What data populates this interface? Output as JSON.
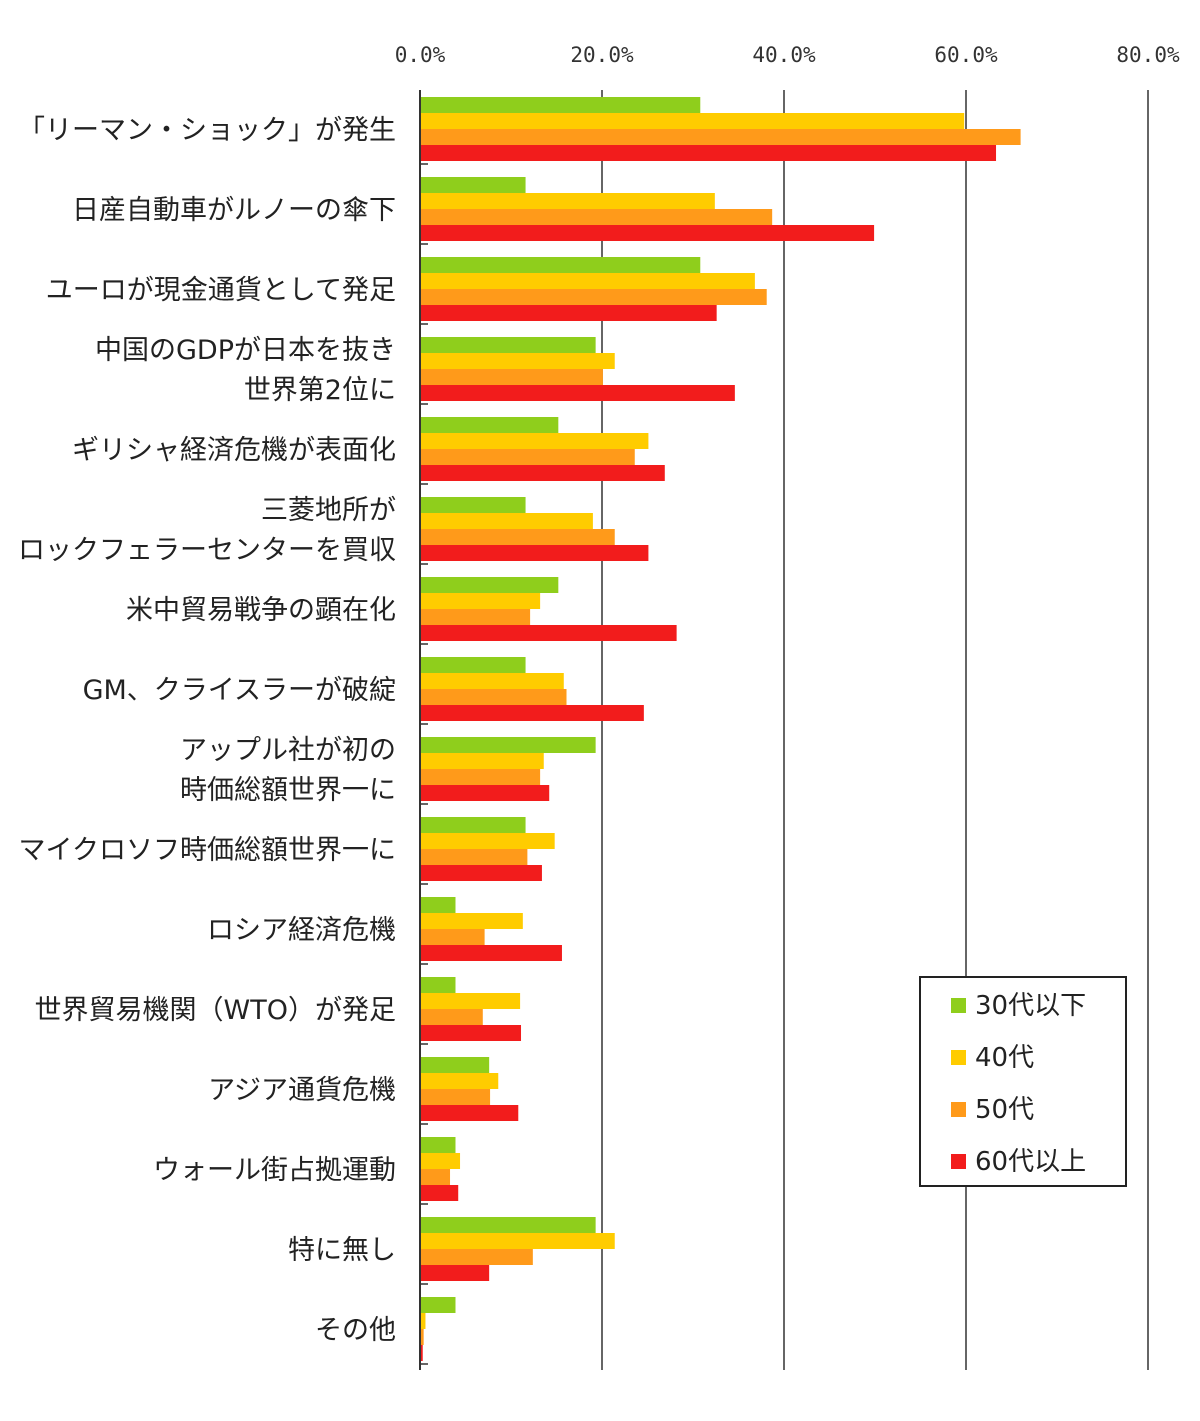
{
  "chart_data": {
    "type": "bar",
    "orientation": "horizontal",
    "title": "",
    "xlabel": "",
    "ylabel": "",
    "xlim": [
      0,
      80
    ],
    "x_ticks": [
      "0.0%",
      "20.0%",
      "40.0%",
      "60.0%",
      "80.0%"
    ],
    "grid": "vertical gridlines",
    "legend_position": "bottom-right, inside plot",
    "categories": [
      [
        "「リーマン・ショック」が発生"
      ],
      [
        "日産自動車がルノーの傘下"
      ],
      [
        "ユーロが現金通貨として発足"
      ],
      [
        "中国のGDPが日本を抜き",
        "世界第2位に"
      ],
      [
        "ギリシャ経済危機が表面化"
      ],
      [
        "三菱地所が",
        "ロックフェラーセンターを買収"
      ],
      [
        "米中貿易戦争の顕在化"
      ],
      [
        "GM、クライスラーが破綻"
      ],
      [
        "アップル社が初の",
        "時価総額世界一に"
      ],
      [
        "マイクロソフ時価総額世界一に"
      ],
      [
        "ロシア経済危機"
      ],
      [
        "世界貿易機関（WTO）が発足"
      ],
      [
        "アジア通貨危機"
      ],
      [
        "ウォール街占拠運動"
      ],
      [
        "特に無し"
      ],
      [
        "その他"
      ]
    ],
    "series": [
      {
        "name": "30代以下",
        "color": "#8fce1c",
        "values": [
          30.8,
          11.6,
          30.8,
          19.3,
          15.2,
          11.6,
          15.2,
          11.6,
          19.3,
          11.6,
          3.9,
          3.9,
          7.6,
          3.9,
          19.3,
          3.9
        ]
      },
      {
        "name": "40代",
        "color": "#ffcc00",
        "values": [
          59.8,
          32.4,
          36.8,
          21.4,
          25.1,
          19.0,
          13.2,
          15.8,
          13.6,
          14.8,
          11.3,
          11.0,
          8.6,
          4.4,
          21.4,
          0.6
        ]
      },
      {
        "name": "50代",
        "color": "#ff9a1a",
        "values": [
          66.0,
          38.7,
          38.1,
          20.1,
          23.6,
          21.4,
          12.1,
          16.1,
          13.2,
          11.8,
          7.1,
          6.9,
          7.7,
          3.3,
          12.4,
          0.4
        ]
      },
      {
        "name": "60代以上",
        "color": "#f21c1c",
        "values": [
          63.3,
          49.9,
          32.6,
          34.6,
          26.9,
          25.1,
          28.2,
          24.6,
          14.2,
          13.4,
          15.6,
          11.1,
          10.8,
          4.2,
          7.6,
          0.3
        ]
      }
    ]
  }
}
